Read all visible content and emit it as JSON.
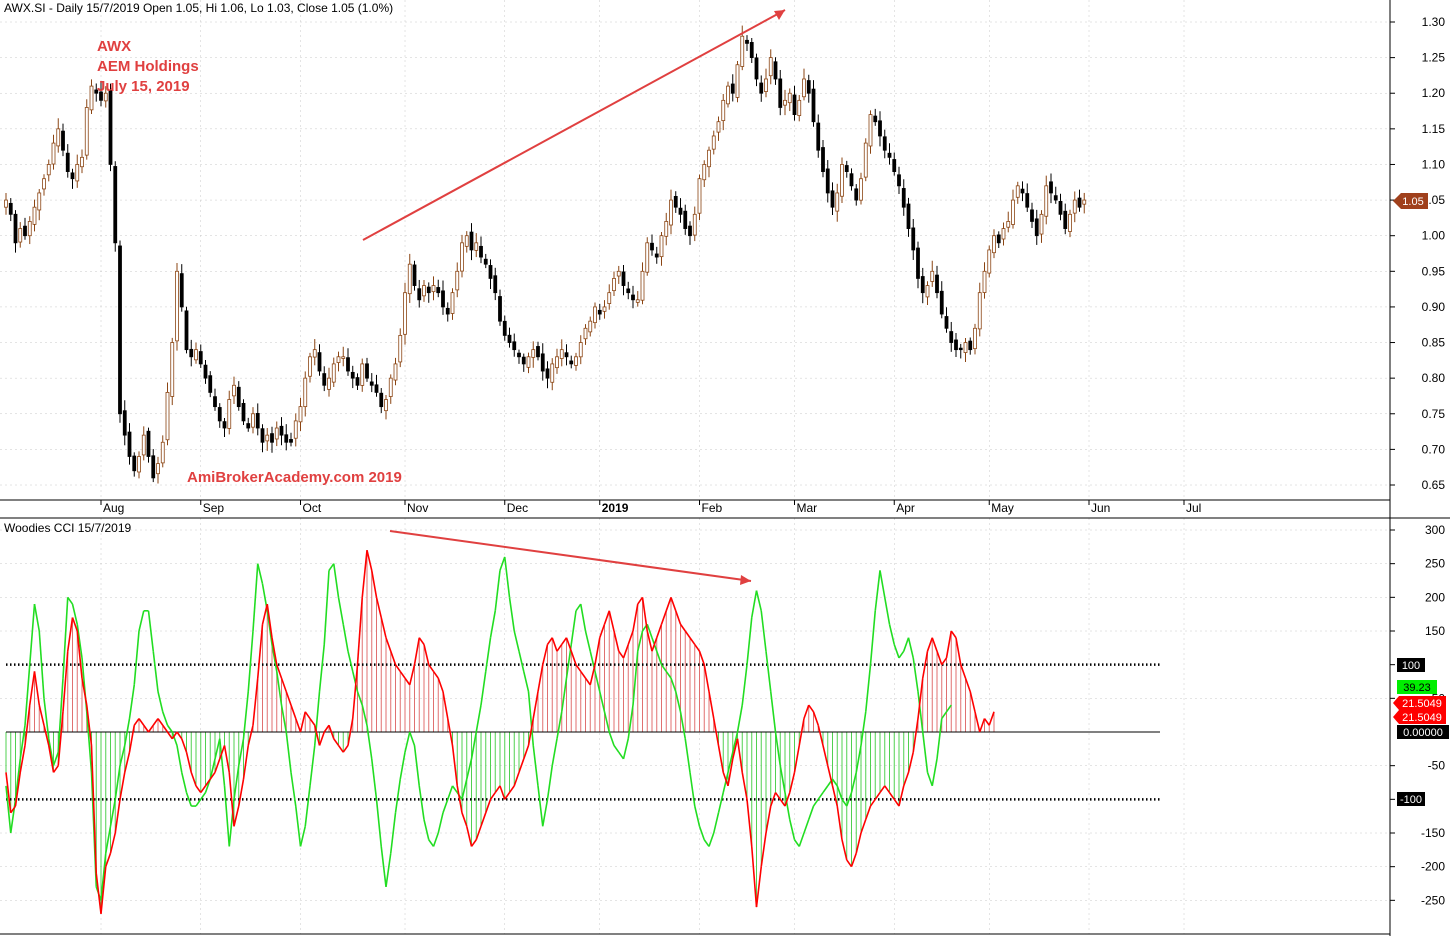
{
  "colors": {
    "up": "#8b4513",
    "down": "#000000",
    "cci_up": "#ff0000",
    "cci_down": "#00dd00",
    "histo_up": "#e07070",
    "histo_down": "#50d050",
    "arrow": "#e04040",
    "annot": "#e04040",
    "grid": "#c8c8c8"
  },
  "chart_data": [
    {
      "type": "candlestick",
      "title": "AWX.SI - Daily 15/7/2019 Open 1.05, Hi 1.06, Lo 1.03, Close 1.05 (1.0%)",
      "annotation": {
        "lines": [
          "AWX",
          "AEM Holdings",
          "July 15, 2019"
        ]
      },
      "watermark": "AmiBrokerAcademy.com   2019",
      "last_price_label": "1.05",
      "ylim": [
        0.62,
        1.32
      ],
      "yticks": [
        "1.30",
        "1.25",
        "1.20",
        "1.15",
        "1.10",
        "1.05",
        "1.00",
        "0.95",
        "0.90",
        "0.85",
        "0.80",
        "0.75",
        "0.70",
        "0.65"
      ],
      "x_labels": [
        "Aug",
        "Sep",
        "Oct",
        "Nov",
        "Dec",
        "2019",
        "Feb",
        "Mar",
        "Apr",
        "May",
        "Jun",
        "Jul"
      ],
      "x_label_bar_index": [
        20,
        41,
        62,
        84,
        105,
        125,
        146,
        166,
        187,
        207,
        228,
        248
      ],
      "closes": [
        1.05,
        1.03,
        0.99,
        1.01,
        1.0,
        1.02,
        1.04,
        1.06,
        1.08,
        1.1,
        1.13,
        1.15,
        1.12,
        1.09,
        1.08,
        1.1,
        1.11,
        1.18,
        1.21,
        1.2,
        1.19,
        1.2,
        1.1,
        0.99,
        0.75,
        0.72,
        0.69,
        0.67,
        0.69,
        0.72,
        0.69,
        0.66,
        0.68,
        0.71,
        0.78,
        0.85,
        0.95,
        0.9,
        0.84,
        0.83,
        0.84,
        0.82,
        0.8,
        0.78,
        0.76,
        0.74,
        0.73,
        0.77,
        0.79,
        0.76,
        0.74,
        0.73,
        0.75,
        0.73,
        0.71,
        0.72,
        0.71,
        0.73,
        0.72,
        0.71,
        0.71,
        0.74,
        0.76,
        0.8,
        0.83,
        0.84,
        0.81,
        0.79,
        0.8,
        0.82,
        0.83,
        0.83,
        0.81,
        0.8,
        0.79,
        0.82,
        0.8,
        0.79,
        0.78,
        0.76,
        0.77,
        0.8,
        0.82,
        0.86,
        0.92,
        0.96,
        0.93,
        0.91,
        0.93,
        0.92,
        0.93,
        0.92,
        0.9,
        0.89,
        0.92,
        0.95,
        0.99,
        1.0,
        0.98,
        0.99,
        0.97,
        0.96,
        0.94,
        0.92,
        0.88,
        0.86,
        0.85,
        0.84,
        0.83,
        0.82,
        0.83,
        0.84,
        0.83,
        0.81,
        0.8,
        0.82,
        0.83,
        0.84,
        0.83,
        0.82,
        0.83,
        0.85,
        0.87,
        0.88,
        0.9,
        0.89,
        0.9,
        0.92,
        0.94,
        0.95,
        0.93,
        0.92,
        0.91,
        0.91,
        0.95,
        0.99,
        0.98,
        0.97,
        1.0,
        1.02,
        1.05,
        1.04,
        1.03,
        1.01,
        1.0,
        1.03,
        1.08,
        1.1,
        1.12,
        1.14,
        1.16,
        1.19,
        1.21,
        1.2,
        1.24,
        1.28,
        1.27,
        1.25,
        1.22,
        1.2,
        1.22,
        1.25,
        1.22,
        1.18,
        1.19,
        1.2,
        1.17,
        1.19,
        1.22,
        1.2,
        1.16,
        1.12,
        1.09,
        1.06,
        1.04,
        1.06,
        1.1,
        1.09,
        1.07,
        1.05,
        1.08,
        1.13,
        1.17,
        1.16,
        1.14,
        1.12,
        1.11,
        1.09,
        1.07,
        1.04,
        1.01,
        0.98,
        0.94,
        0.92,
        0.93,
        0.95,
        0.92,
        0.89,
        0.87,
        0.85,
        0.84,
        0.84,
        0.85,
        0.84,
        0.87,
        0.92,
        0.95,
        0.98,
        1.0,
        0.99,
        1.01,
        1.02,
        1.05,
        1.07,
        1.06,
        1.04,
        1.02,
        1.0,
        1.03,
        1.07,
        1.06,
        1.05,
        1.03,
        1.01,
        1.03,
        1.05,
        1.04,
        1.05
      ]
    },
    {
      "type": "line",
      "title": "Woodies CCI  15/7/2019",
      "ylim": [
        -300,
        310
      ],
      "yticks": [
        "300",
        "250",
        "200",
        "150",
        "100",
        "50",
        "-50",
        "-100",
        "-150",
        "-200",
        "-250"
      ],
      "zero_label": "0.00000",
      "labels": {
        "value_green": "39.23",
        "value_red_a": "21.5049",
        "value_red_b": "21.5049",
        "level_100": "100",
        "level_minus100": "-100"
      },
      "levels": [
        100,
        0,
        -100
      ],
      "series": [
        {
          "name": "CCI",
          "values": [
            -60,
            -120,
            -110,
            -60,
            -20,
            40,
            90,
            40,
            10,
            -20,
            -60,
            -50,
            30,
            120,
            170,
            150,
            80,
            40,
            -20,
            -210,
            -270,
            -200,
            -180,
            -150,
            -100,
            -60,
            -30,
            10,
            20,
            10,
            0,
            10,
            20,
            10,
            0,
            -10,
            0,
            -10,
            -30,
            -60,
            -80,
            -90,
            -80,
            -70,
            -60,
            -40,
            -20,
            -60,
            -140,
            -110,
            -70,
            -20,
            10,
            80,
            160,
            190,
            140,
            100,
            80,
            60,
            40,
            20,
            0,
            30,
            20,
            10,
            -20,
            0,
            10,
            -10,
            -20,
            -30,
            -20,
            20,
            100,
            200,
            270,
            240,
            200,
            170,
            140,
            120,
            100,
            90,
            80,
            70,
            100,
            140,
            130,
            100,
            90,
            80,
            60,
            20,
            -20,
            -80,
            -120,
            -140,
            -170,
            -160,
            -140,
            -120,
            -100,
            -90,
            -80,
            -100,
            -90,
            -80,
            -60,
            -40,
            -20,
            20,
            60,
            100,
            130,
            140,
            120,
            130,
            140,
            120,
            100,
            90,
            80,
            70,
            100,
            140,
            160,
            180,
            150,
            120,
            110,
            130,
            150,
            190,
            200,
            150,
            120,
            140,
            160,
            180,
            200,
            180,
            160,
            150,
            140,
            130,
            120,
            100,
            60,
            20,
            -20,
            -60,
            -80,
            -40,
            -10,
            -60,
            -100,
            -170,
            -260,
            -200,
            -150,
            -110,
            -90,
            -100,
            -110,
            -90,
            -60,
            -20,
            20,
            40,
            30,
            10,
            -20,
            -50,
            -80,
            -110,
            -160,
            -190,
            -200,
            -180,
            -150,
            -130,
            -110,
            -100,
            -90,
            -80,
            -90,
            -100,
            -110,
            -80,
            -60,
            -30,
            20,
            80,
            120,
            140,
            120,
            100,
            110,
            150,
            140,
            100,
            80,
            60,
            30,
            0,
            20,
            10,
            30
          ]
        },
        {
          "name": "TurboCCI",
          "values": [
            -80,
            -150,
            -100,
            -40,
            10,
            100,
            190,
            150,
            50,
            -10,
            -50,
            -30,
            80,
            200,
            190,
            160,
            110,
            30,
            -60,
            -230,
            -250,
            -180,
            -140,
            -100,
            -50,
            -20,
            20,
            70,
            150,
            180,
            180,
            120,
            60,
            30,
            10,
            0,
            -20,
            -60,
            -90,
            -110,
            -110,
            -100,
            -90,
            -70,
            -40,
            -10,
            -80,
            -170,
            -100,
            -50,
            -10,
            60,
            150,
            250,
            220,
            180,
            130,
            90,
            40,
            0,
            -60,
            -110,
            -170,
            -140,
            -80,
            -20,
            60,
            130,
            240,
            250,
            200,
            160,
            120,
            90,
            60,
            40,
            10,
            -40,
            -100,
            -170,
            -230,
            -180,
            -120,
            -70,
            -30,
            0,
            -20,
            -80,
            -130,
            -160,
            -170,
            -150,
            -120,
            -100,
            -80,
            -90,
            -100,
            -70,
            -40,
            0,
            40,
            90,
            140,
            180,
            240,
            260,
            200,
            150,
            120,
            90,
            60,
            -20,
            -80,
            -140,
            -100,
            -50,
            -10,
            30,
            80,
            130,
            180,
            190,
            150,
            120,
            90,
            60,
            30,
            0,
            -20,
            -30,
            -40,
            -10,
            40,
            120,
            150,
            160,
            140,
            120,
            100,
            90,
            80,
            60,
            30,
            -10,
            -60,
            -110,
            -140,
            -160,
            -170,
            -150,
            -120,
            -90,
            -60,
            -30,
            0,
            40,
            100,
            170,
            210,
            180,
            120,
            60,
            0,
            -50,
            -90,
            -130,
            -160,
            -170,
            -150,
            -130,
            -110,
            -100,
            -90,
            -80,
            -70,
            -80,
            -100,
            -110,
            -90,
            -60,
            -20,
            30,
            100,
            180,
            240,
            200,
            160,
            130,
            110,
            120,
            140,
            110,
            60,
            0,
            -60,
            -80,
            -40,
            20,
            30,
            40
          ]
        }
      ]
    }
  ]
}
